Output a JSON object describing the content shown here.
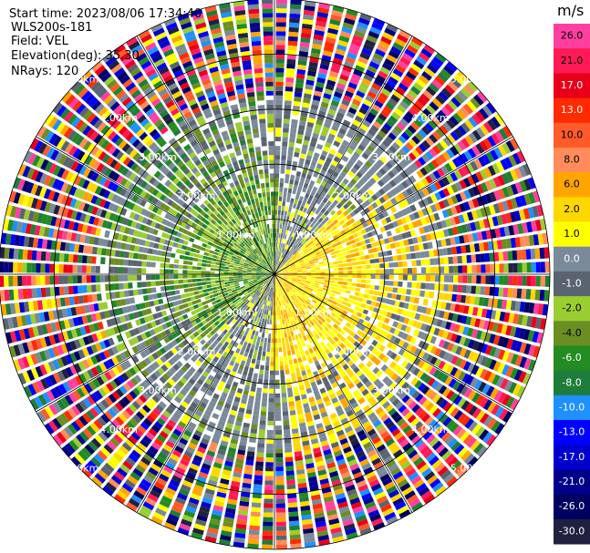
{
  "header": {
    "start_time": "Start time: 2023/08/06 17:34:40",
    "instrument": "WLS200s-181",
    "field": "Field: VEL",
    "elevation": "Elevation(deg): 35.30",
    "nrays": "NRays: 120"
  },
  "chart_data": {
    "type": "heatmap",
    "subtype": "polar-ppi",
    "n_rays": 120,
    "range_max_km": 5.0,
    "range_rings_km": [
      1,
      2,
      3,
      4,
      5
    ],
    "ring_labels": [
      "1.00km",
      "2.00km",
      "3.00km",
      "4.00km",
      "5.00km"
    ],
    "spoke_angles_deg": [
      0,
      30,
      60,
      90,
      120,
      150,
      180,
      210,
      240,
      270,
      300,
      330
    ],
    "grid": true,
    "colorbar": {
      "unit": "m/s",
      "ticks": [
        "26.0",
        "21.0",
        "17.0",
        "13.0",
        "10.0",
        "8.0",
        "6.0",
        "2.0",
        "1.0",
        "0.0",
        "-1.0",
        "-2.0",
        "-4.0",
        "-6.0",
        "-8.0",
        "-10.0",
        "-13.0",
        "-17.0",
        "-21.0",
        "-26.0",
        "-30.0"
      ],
      "colors": [
        "#ff3fa0",
        "#ff1a55",
        "#e8001a",
        "#ff2a00",
        "#ff5a2a",
        "#ff8c5a",
        "#ffa500",
        "#ffd700",
        "#ffff00",
        "#7a8a9a",
        "#5a6470",
        "#9acd32",
        "#6b8e23",
        "#228b22",
        "#1e7d3a",
        "#1e90ff",
        "#0000ff",
        "#0000cd",
        "#00008b",
        "#000060",
        "#202040"
      ]
    },
    "regions": [
      {
        "range_km": [
          0.0,
          1.6
        ],
        "pattern": "velocity field: negative -1 to -6 m/s toward north, positive 1 to 6 m/s toward south-east"
      },
      {
        "range_km": [
          1.6,
          3.2
        ],
        "pattern": "mixed low velocities 0 to ±6 m/s"
      },
      {
        "range_km": [
          3.2,
          5.0
        ],
        "pattern": "noisy random velocities spanning -30 to 26 m/s"
      }
    ]
  }
}
